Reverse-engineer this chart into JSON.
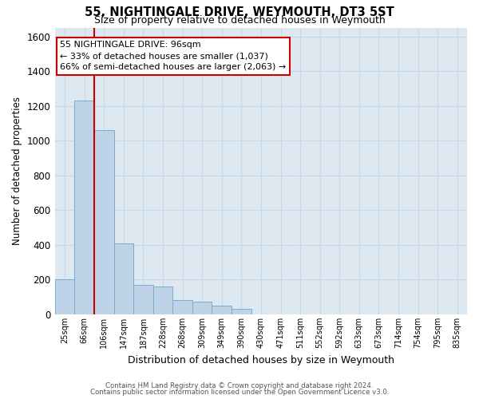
{
  "title1": "55, NIGHTINGALE DRIVE, WEYMOUTH, DT3 5ST",
  "title2": "Size of property relative to detached houses in Weymouth",
  "xlabel": "Distribution of detached houses by size in Weymouth",
  "ylabel": "Number of detached properties",
  "categories": [
    "25sqm",
    "66sqm",
    "106sqm",
    "147sqm",
    "187sqm",
    "228sqm",
    "268sqm",
    "309sqm",
    "349sqm",
    "390sqm",
    "430sqm",
    "471sqm",
    "511sqm",
    "552sqm",
    "592sqm",
    "633sqm",
    "673sqm",
    "714sqm",
    "754sqm",
    "795sqm",
    "835sqm"
  ],
  "values": [
    200,
    1230,
    1060,
    410,
    170,
    160,
    80,
    75,
    50,
    30,
    0,
    0,
    0,
    0,
    0,
    0,
    0,
    0,
    0,
    0,
    0
  ],
  "bar_color": "#bed3e8",
  "bar_edge_color": "#7aaccc",
  "background_color": "#dde8f0",
  "grid_color": "#c8d8e8",
  "ylim_max": 1650,
  "yticks": [
    0,
    200,
    400,
    600,
    800,
    1000,
    1200,
    1400,
    1600
  ],
  "red_line_x": 1.5,
  "annotation_line1": "55 NIGHTINGALE DRIVE: 96sqm",
  "annotation_line2": "← 33% of detached houses are smaller (1,037)",
  "annotation_line3": "66% of semi-detached houses are larger (2,063) →",
  "footer1": "Contains HM Land Registry data © Crown copyright and database right 2024.",
  "footer2": "Contains public sector information licensed under the Open Government Licence v3.0."
}
